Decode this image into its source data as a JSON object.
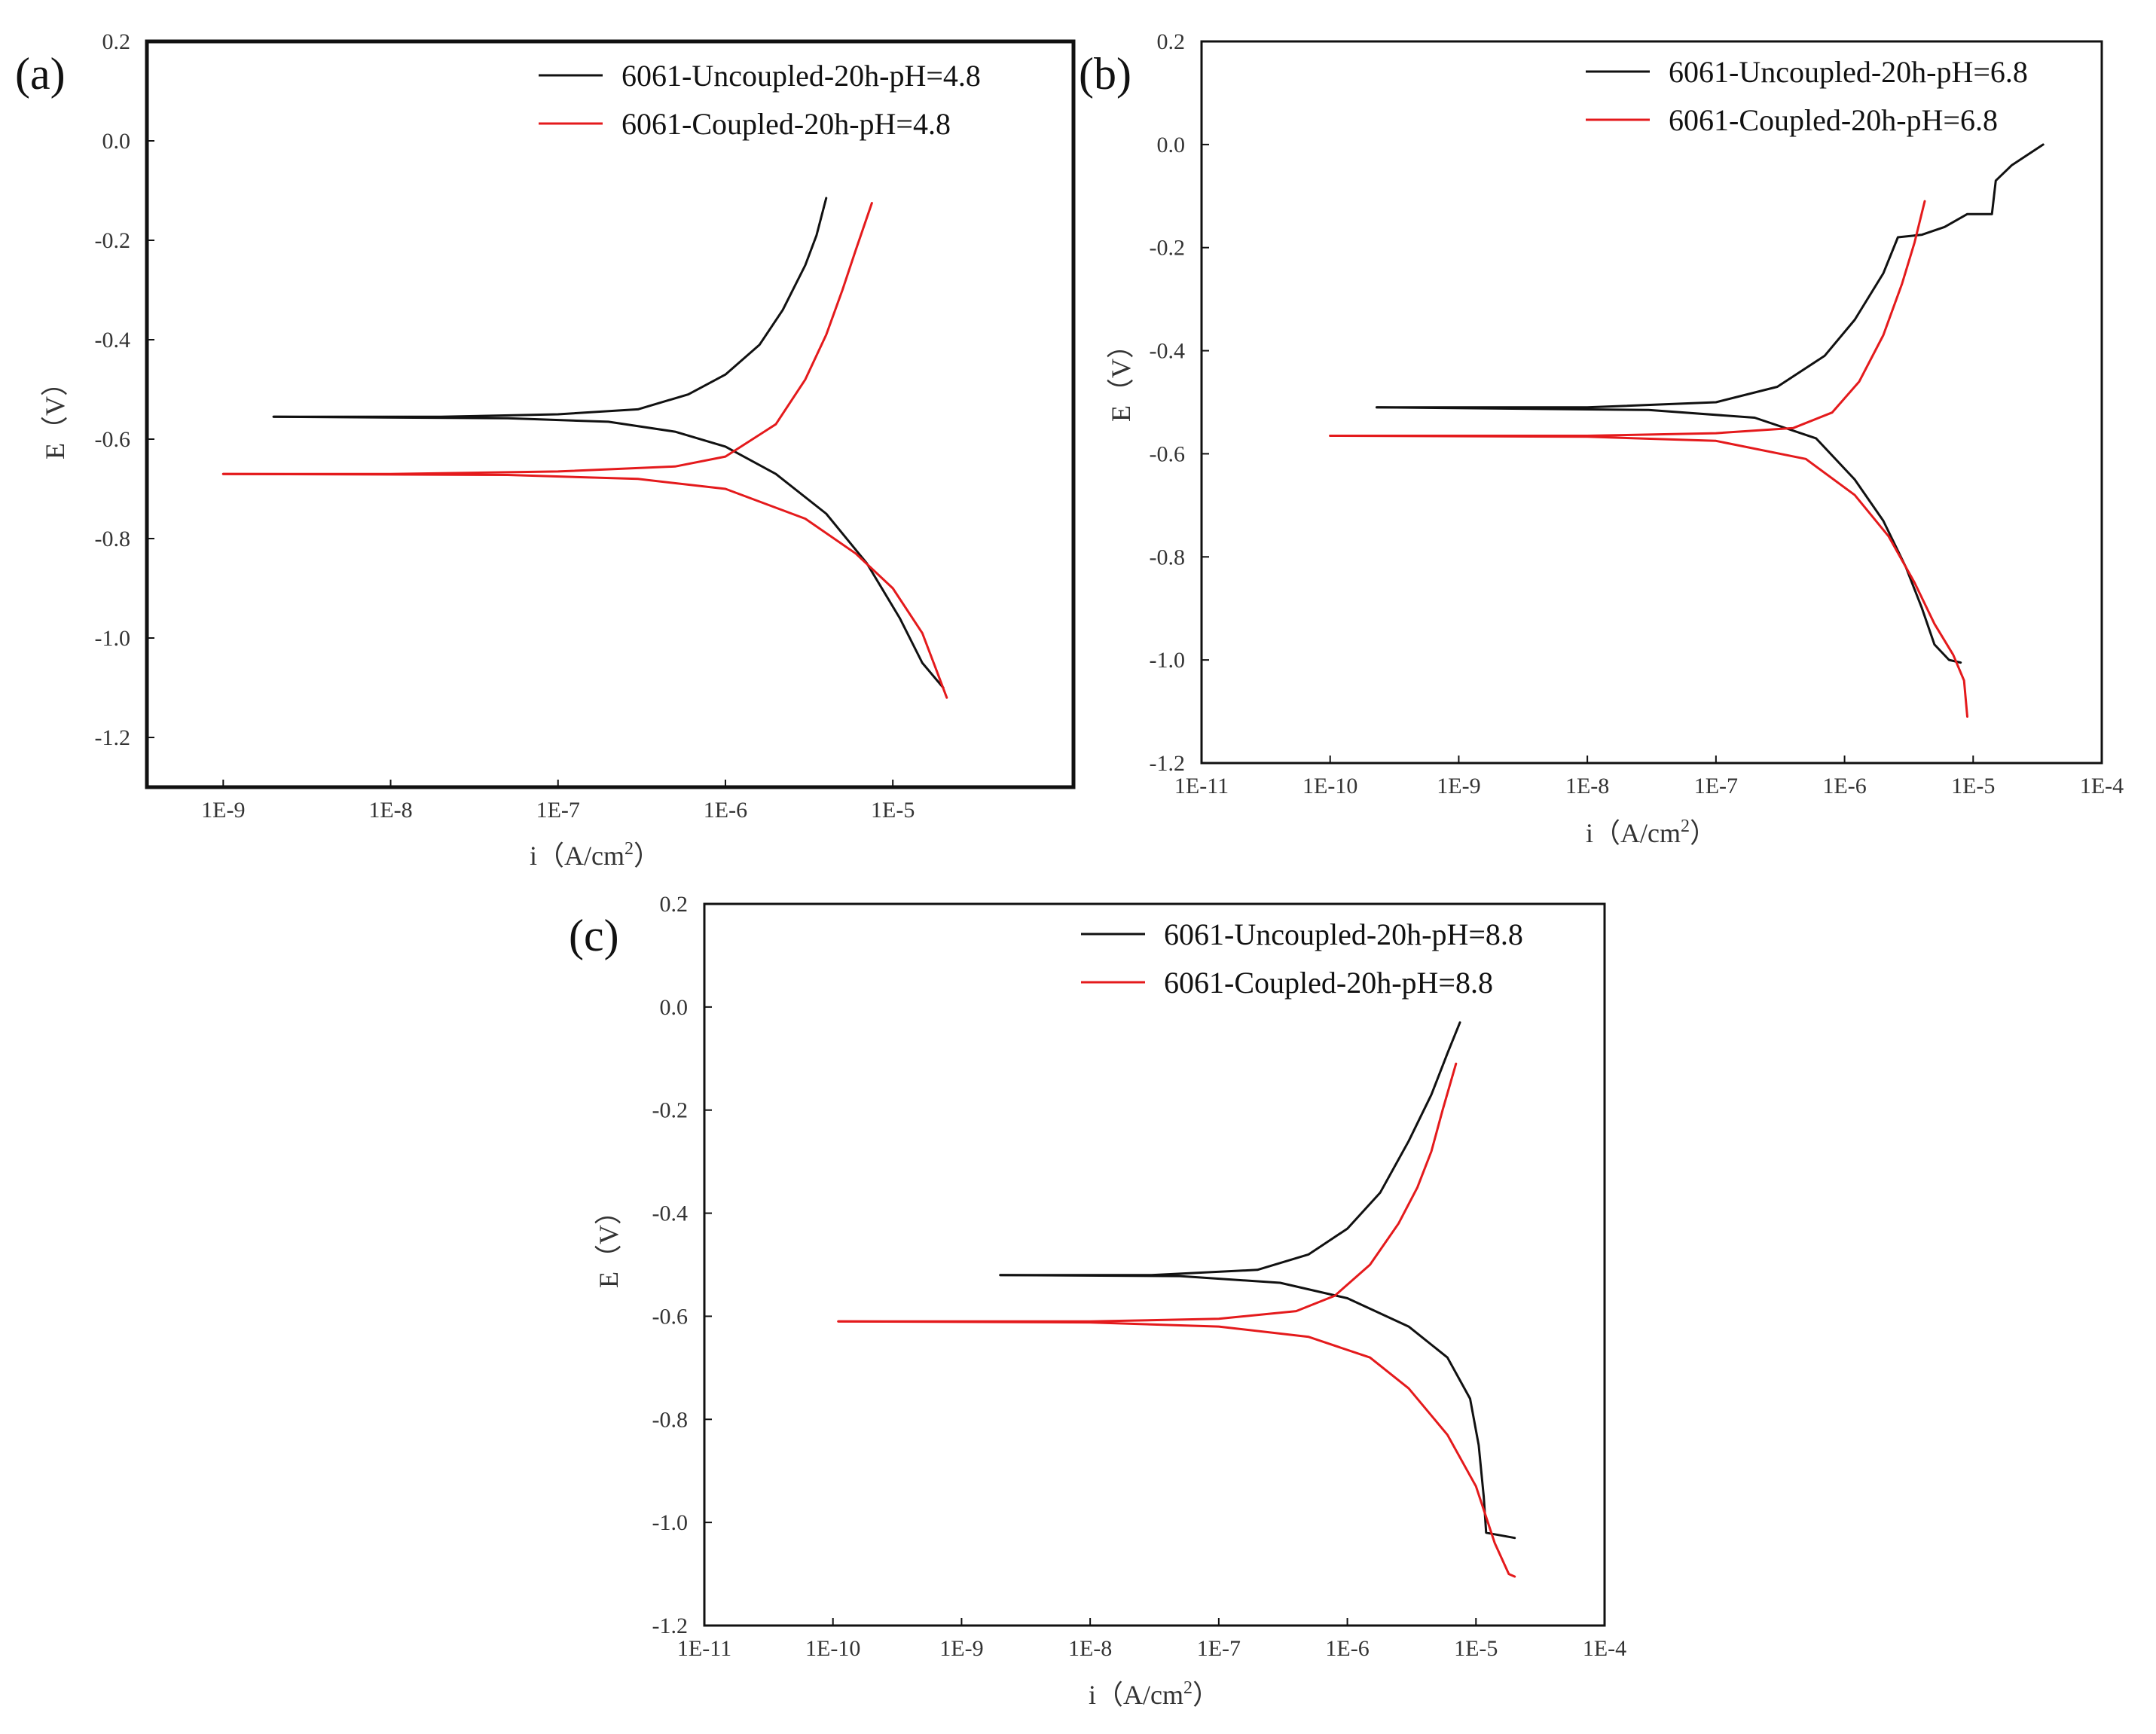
{
  "chart_data": [
    {
      "type": "line",
      "panel_label": "(a)",
      "xlabel_main": "i（A/cm",
      "xlabel_sup": "2",
      "xlabel_end": "）",
      "ylabel": "E（V）",
      "xscale": "log",
      "xlim": [
        3.5e-10,
        0.00012
      ],
      "ylim": [
        -1.3,
        0.2
      ],
      "yticks": [
        "0.2",
        "0.0",
        "-0.2",
        "-0.4",
        "-0.6",
        "-0.8",
        "-1.0",
        "-1.2"
      ],
      "xticks": [
        "1E-9",
        "1E-8",
        "1E-7",
        "1E-6",
        "1E-5"
      ],
      "legend_position": "top-right",
      "series": [
        {
          "name": "6061-Uncoupled-20h-pH=4.8",
          "color": "#111111",
          "anodic": [
            [
              2e-09,
              -0.555
            ],
            [
              2e-08,
              -0.555
            ],
            [
              1e-07,
              -0.55
            ],
            [
              3e-07,
              -0.54
            ],
            [
              6e-07,
              -0.51
            ],
            [
              1e-06,
              -0.47
            ],
            [
              1.6e-06,
              -0.41
            ],
            [
              2.2e-06,
              -0.34
            ],
            [
              3e-06,
              -0.25
            ],
            [
              3.5e-06,
              -0.19
            ],
            [
              4e-06,
              -0.115
            ]
          ],
          "cathodic": [
            [
              2e-09,
              -0.555
            ],
            [
              5e-08,
              -0.558
            ],
            [
              2e-07,
              -0.565
            ],
            [
              5e-07,
              -0.585
            ],
            [
              1e-06,
              -0.615
            ],
            [
              2e-06,
              -0.67
            ],
            [
              4e-06,
              -0.75
            ],
            [
              7e-06,
              -0.85
            ],
            [
              1.1e-05,
              -0.96
            ],
            [
              1.5e-05,
              -1.05
            ],
            [
              2e-05,
              -1.1
            ]
          ]
        },
        {
          "name": "6061-Coupled-20h-pH=4.8",
          "color": "#e41a1c",
          "anodic": [
            [
              1e-09,
              -0.67
            ],
            [
              1e-08,
              -0.67
            ],
            [
              1e-07,
              -0.665
            ],
            [
              5e-07,
              -0.655
            ],
            [
              1e-06,
              -0.635
            ],
            [
              2e-06,
              -0.57
            ],
            [
              3e-06,
              -0.48
            ],
            [
              4e-06,
              -0.39
            ],
            [
              5e-06,
              -0.3
            ],
            [
              6e-06,
              -0.22
            ],
            [
              7.5e-06,
              -0.125
            ]
          ],
          "cathodic": [
            [
              1e-09,
              -0.67
            ],
            [
              5e-08,
              -0.672
            ],
            [
              3e-07,
              -0.68
            ],
            [
              1e-06,
              -0.7
            ],
            [
              3e-06,
              -0.76
            ],
            [
              6e-06,
              -0.83
            ],
            [
              1e-05,
              -0.9
            ],
            [
              1.5e-05,
              -0.99
            ],
            [
              1.8e-05,
              -1.06
            ],
            [
              2.1e-05,
              -1.12
            ]
          ]
        }
      ]
    },
    {
      "type": "line",
      "panel_label": "(b)",
      "xlabel_main": "i（A/cm",
      "xlabel_sup": "2",
      "xlabel_end": "）",
      "ylabel": "E（V）",
      "xscale": "log",
      "xlim": [
        1e-11,
        0.0001
      ],
      "ylim": [
        -1.2,
        0.2
      ],
      "yticks": [
        "0.2",
        "0.0",
        "-0.2",
        "-0.4",
        "-0.6",
        "-0.8",
        "-1.0",
        "-1.2"
      ],
      "xticks": [
        "1E-11",
        "1E-10",
        "1E-9",
        "1E-8",
        "1E-7",
        "1E-6",
        "1E-5",
        "1E-4"
      ],
      "legend_position": "top-right",
      "series": [
        {
          "name": "6061-Uncoupled-20h-pH=6.8",
          "color": "#111111",
          "anodic": [
            [
              2.3e-10,
              -0.51
            ],
            [
              1e-08,
              -0.51
            ],
            [
              1e-07,
              -0.5
            ],
            [
              3e-07,
              -0.47
            ],
            [
              7e-07,
              -0.41
            ],
            [
              1.2e-06,
              -0.34
            ],
            [
              2e-06,
              -0.25
            ],
            [
              2.6e-06,
              -0.18
            ],
            [
              4e-06,
              -0.175
            ],
            [
              6e-06,
              -0.16
            ],
            [
              9e-06,
              -0.135
            ],
            [
              1.4e-05,
              -0.135
            ],
            [
              1.5e-05,
              -0.07
            ],
            [
              2e-05,
              -0.04
            ],
            [
              3.5e-05,
              0.0
            ]
          ],
          "cathodic": [
            [
              2.3e-10,
              -0.51
            ],
            [
              3e-08,
              -0.515
            ],
            [
              2e-07,
              -0.53
            ],
            [
              6e-07,
              -0.57
            ],
            [
              1.2e-06,
              -0.65
            ],
            [
              2e-06,
              -0.73
            ],
            [
              3e-06,
              -0.82
            ],
            [
              4e-06,
              -0.9
            ],
            [
              5e-06,
              -0.97
            ],
            [
              6.5e-06,
              -1.0
            ],
            [
              8e-06,
              -1.005
            ]
          ]
        },
        {
          "name": "6061-Coupled-20h-pH=6.8",
          "color": "#e41a1c",
          "anodic": [
            [
              1e-10,
              -0.565
            ],
            [
              1e-08,
              -0.565
            ],
            [
              1e-07,
              -0.56
            ],
            [
              4e-07,
              -0.55
            ],
            [
              8e-07,
              -0.52
            ],
            [
              1.3e-06,
              -0.46
            ],
            [
              2e-06,
              -0.37
            ],
            [
              2.8e-06,
              -0.27
            ],
            [
              3.5e-06,
              -0.19
            ],
            [
              4.2e-06,
              -0.11
            ]
          ],
          "cathodic": [
            [
              1e-10,
              -0.565
            ],
            [
              1e-08,
              -0.567
            ],
            [
              1e-07,
              -0.575
            ],
            [
              5e-07,
              -0.61
            ],
            [
              1.2e-06,
              -0.68
            ],
            [
              2.2e-06,
              -0.76
            ],
            [
              3.5e-06,
              -0.85
            ],
            [
              5e-06,
              -0.93
            ],
            [
              7e-06,
              -0.99
            ],
            [
              8.5e-06,
              -1.04
            ],
            [
              9e-06,
              -1.11
            ]
          ]
        }
      ]
    },
    {
      "type": "line",
      "panel_label": "(c)",
      "xlabel_main": "i（A/cm",
      "xlabel_sup": "2",
      "xlabel_end": "）",
      "ylabel": "E（V）",
      "xscale": "log",
      "xlim": [
        1e-11,
        0.0001
      ],
      "ylim": [
        -1.2,
        0.2
      ],
      "yticks": [
        "0.2",
        "0.0",
        "-0.2",
        "-0.4",
        "-0.6",
        "-0.8",
        "-1.0",
        "-1.2"
      ],
      "xticks": [
        "1E-11",
        "1E-10",
        "1E-9",
        "1E-8",
        "1E-7",
        "1E-6",
        "1E-5",
        "1E-4"
      ],
      "legend_position": "top-right",
      "series": [
        {
          "name": "6061-Uncoupled-20h-pH=8.8",
          "color": "#111111",
          "anodic": [
            [
              2e-09,
              -0.52
            ],
            [
              3e-08,
              -0.52
            ],
            [
              2e-07,
              -0.51
            ],
            [
              5e-07,
              -0.48
            ],
            [
              1e-06,
              -0.43
            ],
            [
              1.8e-06,
              -0.36
            ],
            [
              3e-06,
              -0.26
            ],
            [
              4.5e-06,
              -0.17
            ],
            [
              6e-06,
              -0.09
            ],
            [
              7.5e-06,
              -0.03
            ]
          ],
          "cathodic": [
            [
              2e-09,
              -0.52
            ],
            [
              5e-08,
              -0.522
            ],
            [
              3e-07,
              -0.535
            ],
            [
              1e-06,
              -0.565
            ],
            [
              3e-06,
              -0.62
            ],
            [
              6e-06,
              -0.68
            ],
            [
              9e-06,
              -0.76
            ],
            [
              1.05e-05,
              -0.85
            ],
            [
              1.15e-05,
              -0.95
            ],
            [
              1.2e-05,
              -1.02
            ],
            [
              2e-05,
              -1.03
            ]
          ]
        },
        {
          "name": "6061-Coupled-20h-pH=8.8",
          "color": "#e41a1c",
          "anodic": [
            [
              1.1e-10,
              -0.61
            ],
            [
              1e-08,
              -0.61
            ],
            [
              1e-07,
              -0.605
            ],
            [
              4e-07,
              -0.59
            ],
            [
              8e-07,
              -0.56
            ],
            [
              1.5e-06,
              -0.5
            ],
            [
              2.5e-06,
              -0.42
            ],
            [
              3.5e-06,
              -0.35
            ],
            [
              4.5e-06,
              -0.28
            ],
            [
              5.5e-06,
              -0.2
            ],
            [
              7e-06,
              -0.11
            ]
          ],
          "cathodic": [
            [
              1.1e-10,
              -0.61
            ],
            [
              1e-08,
              -0.612
            ],
            [
              1e-07,
              -0.62
            ],
            [
              5e-07,
              -0.64
            ],
            [
              1.5e-06,
              -0.68
            ],
            [
              3e-06,
              -0.74
            ],
            [
              6e-06,
              -0.83
            ],
            [
              1e-05,
              -0.93
            ],
            [
              1.4e-05,
              -1.04
            ],
            [
              1.8e-05,
              -1.1
            ],
            [
              2e-05,
              -1.105
            ]
          ]
        }
      ]
    }
  ]
}
